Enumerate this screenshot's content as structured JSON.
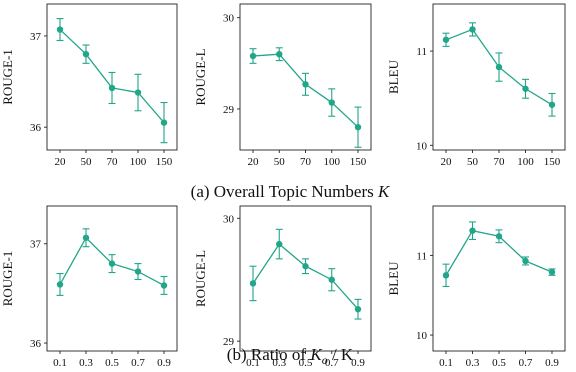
{
  "style": {
    "series_color": "#21a68a"
  },
  "captions": {
    "top": {
      "prefix": "(a) Overall Topic Numbers ",
      "italic": "K",
      "sub": "",
      "suffix": ""
    },
    "bottom": {
      "prefix": "(b) Ratio of ",
      "italic": "K",
      "sub": "o",
      "suffix": " / K"
    }
  },
  "chart_data": [
    {
      "type": "line",
      "ylabel": "ROUGE-1",
      "categories": [
        "20",
        "50",
        "70",
        "100",
        "150"
      ],
      "values": [
        37.07,
        36.8,
        36.43,
        36.38,
        36.05
      ],
      "errors": [
        0.12,
        0.1,
        0.17,
        0.2,
        0.22
      ],
      "ylim": [
        35.75,
        37.35
      ],
      "yticks": [
        36,
        37
      ]
    },
    {
      "type": "line",
      "ylabel": "ROUGE-L",
      "categories": [
        "20",
        "50",
        "70",
        "100",
        "150"
      ],
      "values": [
        29.58,
        29.6,
        29.27,
        29.07,
        28.8
      ],
      "errors": [
        0.08,
        0.07,
        0.12,
        0.15,
        0.22
      ],
      "ylim": [
        28.55,
        30.15
      ],
      "yticks": [
        29,
        30
      ]
    },
    {
      "type": "line",
      "ylabel": "BLEU",
      "categories": [
        "20",
        "50",
        "70",
        "100",
        "150"
      ],
      "values": [
        11.12,
        11.23,
        10.83,
        10.6,
        10.43
      ],
      "errors": [
        0.07,
        0.07,
        0.15,
        0.1,
        0.12
      ],
      "ylim": [
        9.95,
        11.5
      ],
      "yticks": [
        10,
        11
      ]
    },
    {
      "type": "line",
      "ylabel": "ROUGE-1",
      "categories": [
        "0.1",
        "0.3",
        "0.5",
        "0.7",
        "0.9"
      ],
      "values": [
        36.59,
        37.06,
        36.8,
        36.72,
        36.58
      ],
      "errors": [
        0.11,
        0.09,
        0.09,
        0.08,
        0.09
      ],
      "ylim": [
        35.92,
        37.38
      ],
      "yticks": [
        36,
        37
      ]
    },
    {
      "type": "line",
      "ylabel": "ROUGE-L",
      "categories": [
        "0.1",
        "0.3",
        "0.5",
        "0.7",
        "0.9"
      ],
      "values": [
        29.47,
        29.79,
        29.61,
        29.5,
        29.26
      ],
      "errors": [
        0.14,
        0.12,
        0.06,
        0.09,
        0.08
      ],
      "ylim": [
        28.92,
        30.1
      ],
      "yticks": [
        29,
        30
      ]
    },
    {
      "type": "line",
      "ylabel": "BLEU",
      "categories": [
        "0.1",
        "0.3",
        "0.5",
        "0.7",
        "0.9"
      ],
      "values": [
        10.75,
        11.31,
        11.24,
        10.93,
        10.79
      ],
      "errors": [
        0.14,
        0.11,
        0.08,
        0.05,
        0.04
      ],
      "ylim": [
        9.8,
        11.62
      ],
      "yticks": [
        10,
        11
      ]
    }
  ]
}
